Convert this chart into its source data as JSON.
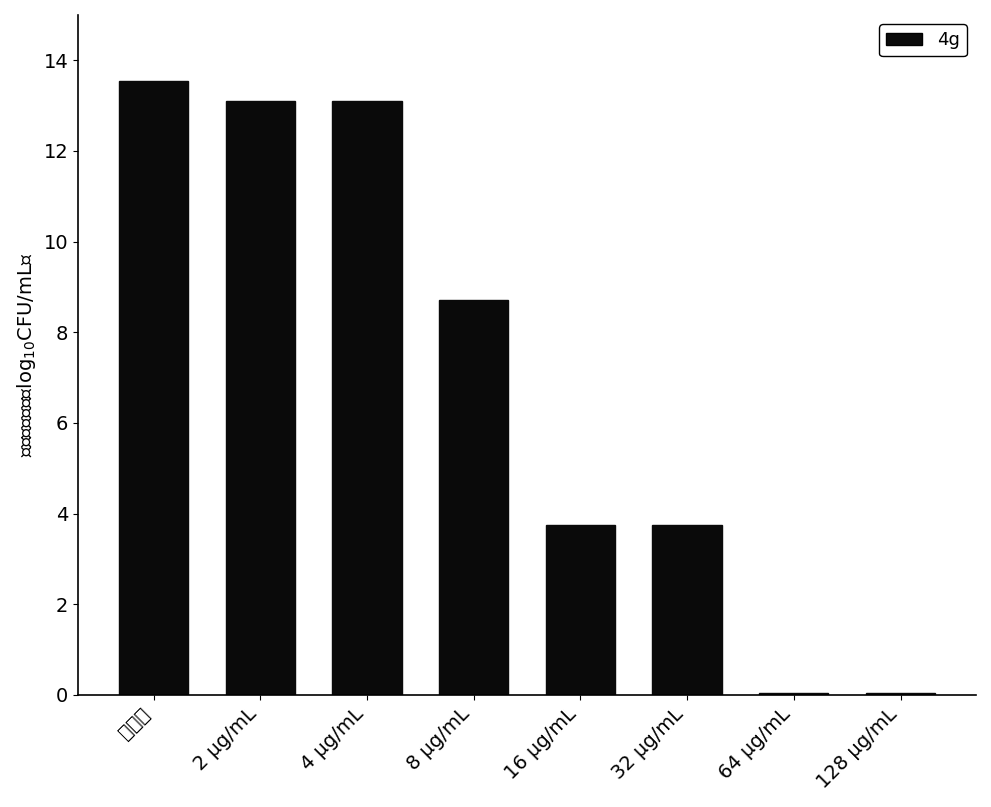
{
  "categories": [
    "缓冲液",
    "2 μg/mL",
    "4 μg/mL",
    "8 μg/mL",
    "16 μg/mL",
    "32 μg/mL",
    "64 μg/mL",
    "128 μg/mL"
  ],
  "values": [
    13.55,
    13.1,
    13.1,
    8.72,
    3.75,
    3.75,
    0.05,
    0.05
  ],
  "bar_color": "#0a0a0a",
  "ylim": [
    0,
    15
  ],
  "yticks": [
    0,
    2,
    4,
    6,
    8,
    10,
    12,
    14
  ],
  "legend_label": "4g",
  "legend_facecolor": "#ffffff",
  "background_color": "#ffffff",
  "bar_width": 0.65,
  "tick_fontsize": 14,
  "ylabel_fontsize": 14
}
